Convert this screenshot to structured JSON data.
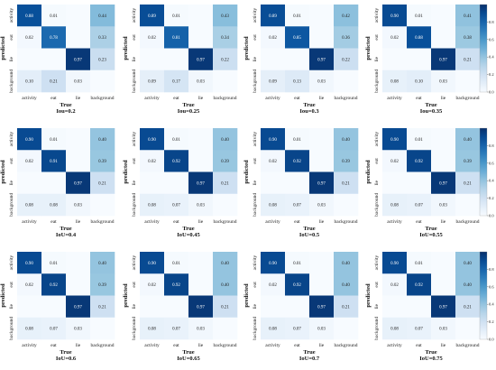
{
  "chart_data": [
    {
      "type": "heatmap",
      "title": "",
      "xlabel": "True",
      "ylabel": "predicted",
      "iou_label": "Iou=0.2",
      "x_categories": [
        "activity",
        "eat",
        "lie",
        "background"
      ],
      "y_categories": [
        "activity",
        "eat",
        "lie",
        "background"
      ],
      "values": [
        [
          0.88,
          0.01,
          "",
          0.44
        ],
        [
          0.02,
          0.78,
          "",
          0.33
        ],
        [
          "",
          "",
          0.97,
          0.23
        ],
        [
          0.1,
          0.21,
          0.03,
          ""
        ]
      ]
    },
    {
      "type": "heatmap",
      "title": "",
      "xlabel": "True",
      "ylabel": "predicted",
      "iou_label": "Iou=0.25",
      "x_categories": [
        "activity",
        "eat",
        "lie",
        "background"
      ],
      "y_categories": [
        "activity",
        "eat",
        "lie",
        "background"
      ],
      "values": [
        [
          0.89,
          0.01,
          "",
          0.43
        ],
        [
          0.02,
          0.81,
          "",
          0.34
        ],
        [
          "",
          "",
          0.97,
          0.22
        ],
        [
          0.09,
          0.17,
          0.03,
          ""
        ]
      ]
    },
    {
      "type": "heatmap",
      "title": "",
      "xlabel": "True",
      "ylabel": "predicted",
      "iou_label": "Iou=0.3",
      "x_categories": [
        "activity",
        "eat",
        "lie",
        "background"
      ],
      "y_categories": [
        "activity",
        "eat",
        "lie",
        "background"
      ],
      "values": [
        [
          0.89,
          0.01,
          "",
          0.42
        ],
        [
          0.02,
          0.85,
          "",
          0.36
        ],
        [
          "",
          "",
          0.97,
          0.22
        ],
        [
          0.09,
          0.13,
          0.03,
          ""
        ]
      ]
    },
    {
      "type": "heatmap",
      "title": "",
      "xlabel": "True",
      "ylabel": "predicted",
      "iou_label": "Iou=0.35",
      "x_categories": [
        "activity",
        "eat",
        "lie",
        "background"
      ],
      "y_categories": [
        "activity",
        "eat",
        "lie",
        "background"
      ],
      "values": [
        [
          0.9,
          0.01,
          "",
          0.41
        ],
        [
          0.02,
          0.88,
          "",
          0.38
        ],
        [
          "",
          "",
          0.97,
          0.21
        ],
        [
          0.08,
          0.1,
          0.03,
          ""
        ]
      ]
    },
    {
      "type": "heatmap",
      "title": "",
      "xlabel": "True",
      "ylabel": "predicted",
      "iou_label": "IoU=0.4",
      "x_categories": [
        "activity",
        "eat",
        "lie",
        "background"
      ],
      "y_categories": [
        "activity",
        "eat",
        "lie",
        "background"
      ],
      "values": [
        [
          0.9,
          0.01,
          "",
          0.4
        ],
        [
          0.02,
          0.91,
          "",
          0.39
        ],
        [
          "",
          "",
          0.97,
          0.21
        ],
        [
          0.08,
          0.08,
          0.03,
          ""
        ]
      ]
    },
    {
      "type": "heatmap",
      "title": "",
      "xlabel": "True",
      "ylabel": "predicted",
      "iou_label": "IoU=0.45",
      "x_categories": [
        "activity",
        "eat",
        "lie",
        "background"
      ],
      "y_categories": [
        "activity",
        "eat",
        "lie",
        "background"
      ],
      "values": [
        [
          0.9,
          0.01,
          "",
          0.4
        ],
        [
          0.02,
          0.92,
          "",
          0.39
        ],
        [
          "",
          "",
          0.97,
          0.21
        ],
        [
          0.08,
          0.07,
          0.03,
          ""
        ]
      ]
    },
    {
      "type": "heatmap",
      "title": "",
      "xlabel": "True",
      "ylabel": "predicted",
      "iou_label": "IoU=0.5",
      "x_categories": [
        "activity",
        "eat",
        "lie",
        "background"
      ],
      "y_categories": [
        "activity",
        "eat",
        "lie",
        "background"
      ],
      "values": [
        [
          0.9,
          0.01,
          "",
          0.4
        ],
        [
          0.02,
          0.92,
          "",
          0.39
        ],
        [
          "",
          "",
          0.97,
          0.21
        ],
        [
          0.08,
          0.07,
          0.03,
          ""
        ]
      ]
    },
    {
      "type": "heatmap",
      "title": "",
      "xlabel": "True",
      "ylabel": "predicted",
      "iou_label": "IoU=0.55",
      "x_categories": [
        "activity",
        "eat",
        "lie",
        "background"
      ],
      "y_categories": [
        "activity",
        "eat",
        "lie",
        "background"
      ],
      "values": [
        [
          0.9,
          0.01,
          "",
          0.4
        ],
        [
          0.02,
          0.92,
          "",
          0.39
        ],
        [
          "",
          "",
          0.97,
          0.21
        ],
        [
          0.08,
          0.07,
          0.03,
          ""
        ]
      ]
    },
    {
      "type": "heatmap",
      "title": "",
      "xlabel": "True",
      "ylabel": "predicted",
      "iou_label": "IoU=0.6",
      "x_categories": [
        "activity",
        "eat",
        "lie",
        "background"
      ],
      "y_categories": [
        "activity",
        "eat",
        "lie",
        "background"
      ],
      "values": [
        [
          0.9,
          0.01,
          "",
          0.4
        ],
        [
          0.02,
          0.92,
          "",
          0.39
        ],
        [
          "",
          "",
          0.97,
          0.21
        ],
        [
          0.08,
          0.07,
          0.03,
          ""
        ]
      ]
    },
    {
      "type": "heatmap",
      "title": "",
      "xlabel": "True",
      "ylabel": "predicted",
      "iou_label": "IoU=0.65",
      "x_categories": [
        "activity",
        "eat",
        "lie",
        "background"
      ],
      "y_categories": [
        "activity",
        "eat",
        "lie",
        "background"
      ],
      "values": [
        [
          0.9,
          0.01,
          "",
          0.4
        ],
        [
          0.02,
          0.92,
          "",
          0.4
        ],
        [
          "",
          "",
          0.97,
          0.21
        ],
        [
          0.08,
          0.07,
          0.03,
          ""
        ]
      ]
    },
    {
      "type": "heatmap",
      "title": "",
      "xlabel": "True",
      "ylabel": "predicted",
      "iou_label": "IoU=0.7",
      "x_categories": [
        "activity",
        "eat",
        "lie",
        "background"
      ],
      "y_categories": [
        "activity",
        "eat",
        "lie",
        "background"
      ],
      "values": [
        [
          0.9,
          0.01,
          "",
          0.4
        ],
        [
          0.02,
          0.92,
          "",
          0.4
        ],
        [
          "",
          "",
          0.97,
          0.21
        ],
        [
          0.08,
          0.07,
          0.03,
          ""
        ]
      ]
    },
    {
      "type": "heatmap",
      "title": "",
      "xlabel": "True",
      "ylabel": "predicted",
      "iou_label": "IoU=0.75",
      "x_categories": [
        "activity",
        "eat",
        "lie",
        "background"
      ],
      "y_categories": [
        "activity",
        "eat",
        "lie",
        "background"
      ],
      "values": [
        [
          0.9,
          0.01,
          "",
          0.4
        ],
        [
          0.02,
          0.92,
          "",
          0.4
        ],
        [
          "",
          "",
          0.97,
          0.21
        ],
        [
          0.08,
          0.07,
          0.03,
          ""
        ]
      ]
    }
  ],
  "colorbar": {
    "range": [
      0,
      1
    ],
    "ticks": [
      "0.8",
      "0.6",
      "0.4",
      "0.2",
      "0.0"
    ],
    "colormap": "Blues"
  }
}
